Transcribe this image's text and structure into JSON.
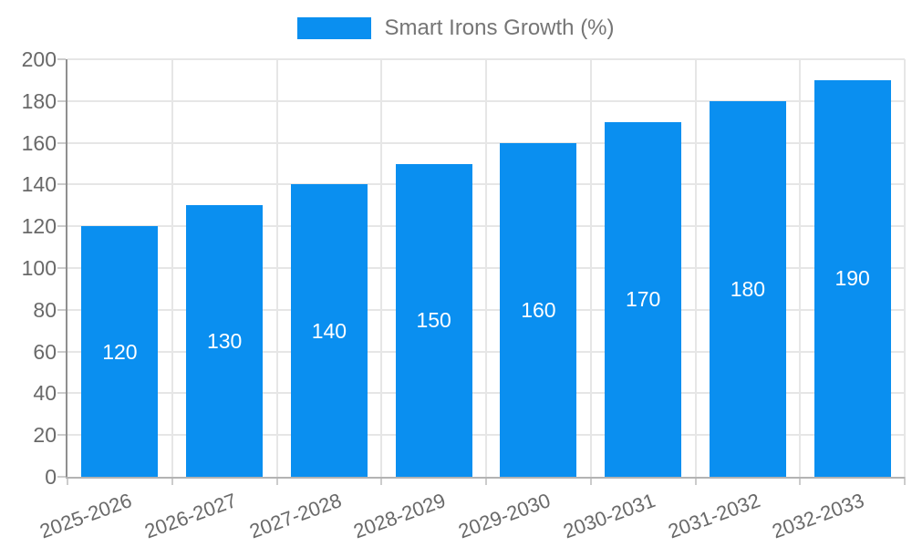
{
  "legend": {
    "label": "Smart Irons Growth (%)"
  },
  "chart_data": {
    "type": "bar",
    "title": "",
    "series_name": "Smart Irons Growth (%)",
    "categories": [
      "2025-2026",
      "2026-2027",
      "2027-2028",
      "2028-2029",
      "2029-2030",
      "2030-2031",
      "2031-2032",
      "2032-2033"
    ],
    "values": [
      120,
      130,
      140,
      150,
      160,
      170,
      180,
      190
    ],
    "value_labels": [
      "120",
      "130",
      "140",
      "150",
      "160",
      "170",
      "180",
      "190"
    ],
    "xlabel": "",
    "ylabel": "",
    "ylim": [
      0,
      200
    ],
    "y_tick_step": 20,
    "y_ticks": [
      "0",
      "20",
      "40",
      "60",
      "80",
      "100",
      "120",
      "140",
      "160",
      "180",
      "200"
    ],
    "grid": "on",
    "legend_position": "top-center",
    "colors": {
      "bar": "#0a8ff0",
      "grid_line": "#e6e6e6",
      "y_axis_line": "#8f8f8f",
      "x_axis_line": "#b3b3b3",
      "tick_mark": "#cccccc",
      "axis_text": "#696969",
      "legend_text": "#757575",
      "value_label_text": "#ffffff",
      "background": "#ffffff"
    }
  }
}
